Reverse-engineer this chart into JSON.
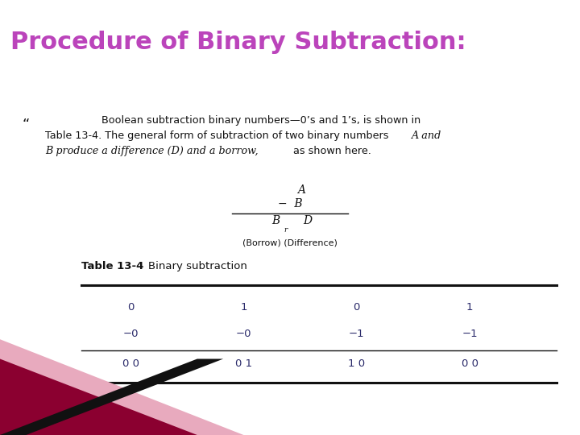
{
  "title": "Procedure of Binary Subtraction:",
  "title_color": "#bb44bb",
  "background_color": "#ffffff",
  "bullet_char": "“",
  "line1": "Boolean subtraction binary numbers—0’s and 1’s, is shown in",
  "line2_normal": "Table 13-4. The general form of subtraction of two binary numbers ",
  "line2_italic": "A and",
  "line3_italic": "B produce a difference (D) and a borrow,",
  "line3_normal": " as shown here.",
  "formula_A": "A",
  "formula_minusB": "−  B",
  "formula_Br": "B",
  "formula_r": "r",
  "formula_D": "D",
  "formula_borrow": "(Borrow)",
  "formula_difference": "(Difference)",
  "table_label": "Table 13-4",
  "table_title": "Binary subtraction",
  "row1": [
    "0",
    "1",
    "0",
    "1"
  ],
  "row2": [
    "−0",
    "−0",
    "−1",
    "−1"
  ],
  "row3": [
    "0 0",
    "0 1",
    "1 0",
    "0 0"
  ],
  "text_color": "#111111",
  "table_num_color": "#2a2a6a",
  "deco_pink": "#e8aabe",
  "deco_red": "#8b0030",
  "deco_black": "#111111"
}
